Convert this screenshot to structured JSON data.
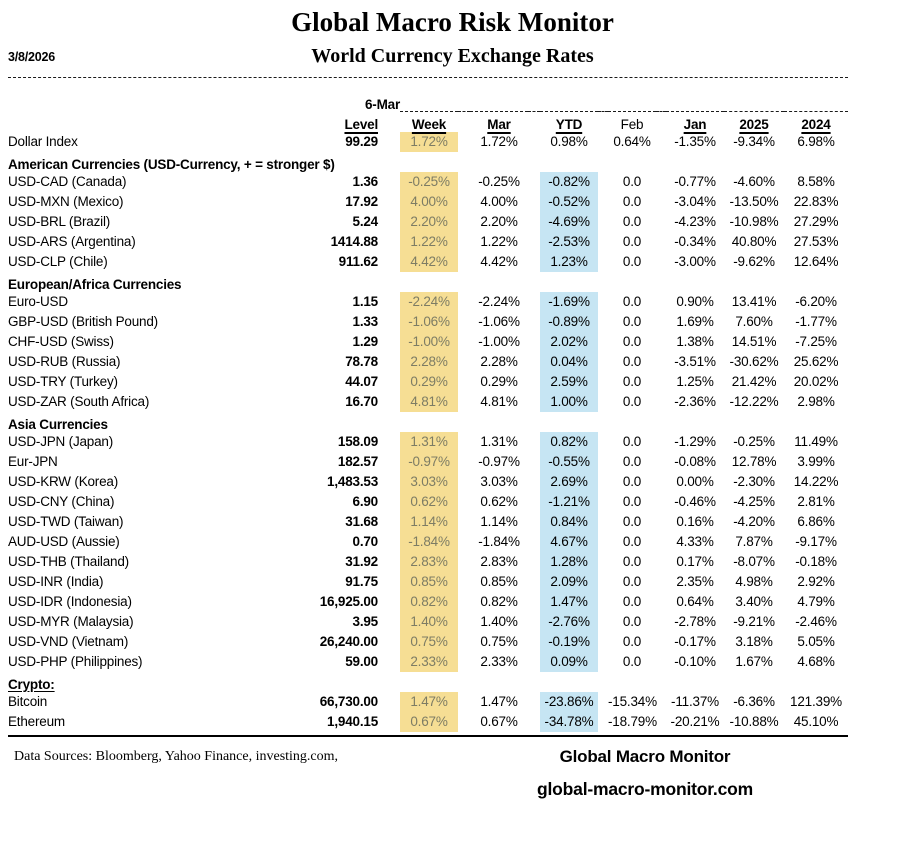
{
  "header": {
    "date": "3/8/2026",
    "title": "Global Macro Risk Monitor",
    "subtitle": "World Currency Exchange Rates",
    "asof_label": "6-Mar"
  },
  "colors": {
    "week_highlight": "#F6DE94",
    "ytd_highlight": "#C6E5F3",
    "week_text": "#7D7C64"
  },
  "table": {
    "columns": [
      {
        "key": "level",
        "label": "Level"
      },
      {
        "key": "week",
        "label": "Week"
      },
      {
        "key": "mar",
        "label": "Mar"
      },
      {
        "key": "ytd",
        "label": "YTD"
      },
      {
        "key": "feb",
        "label": "Feb"
      },
      {
        "key": "jan",
        "label": "Jan"
      },
      {
        "key": "y2025",
        "label": "2025"
      },
      {
        "key": "y2024",
        "label": "2024"
      }
    ],
    "rows": [
      {
        "type": "data",
        "label": "Dollar Index",
        "values": [
          "99.29",
          "1.72%",
          "1.72%",
          "0.98%",
          "0.64%",
          "-1.35%",
          "-9.34%",
          "6.98%"
        ],
        "week_hl": true,
        "ytd_hl": false
      },
      {
        "type": "section",
        "label": "American Currencies (USD-Currency, + = stronger $)",
        "underline": false
      },
      {
        "type": "data",
        "label": "USD-CAD (Canada)",
        "values": [
          "1.36",
          "-0.25%",
          "-0.25%",
          "-0.82%",
          "0.0",
          "-0.77%",
          "-4.60%",
          "8.58%"
        ],
        "week_hl": true,
        "ytd_hl": true
      },
      {
        "type": "data",
        "label": "USD-MXN  (Mexico)",
        "values": [
          "17.92",
          "4.00%",
          "4.00%",
          "-0.52%",
          "0.0",
          "-3.04%",
          "-13.50%",
          "22.83%"
        ],
        "week_hl": true,
        "ytd_hl": true
      },
      {
        "type": "data",
        "label": "USD-BRL (Brazil)",
        "values": [
          "5.24",
          "2.20%",
          "2.20%",
          "-4.69%",
          "0.0",
          "-4.23%",
          "-10.98%",
          "27.29%"
        ],
        "week_hl": true,
        "ytd_hl": true
      },
      {
        "type": "data",
        "label": "USD-ARS (Argentina)",
        "values": [
          "1414.88",
          "1.22%",
          "1.22%",
          "-2.53%",
          "0.0",
          "-0.34%",
          "40.80%",
          "27.53%"
        ],
        "week_hl": true,
        "ytd_hl": true
      },
      {
        "type": "data",
        "label": "USD-CLP (Chile)",
        "values": [
          "911.62",
          "4.42%",
          "4.42%",
          "1.23%",
          "0.0",
          "-3.00%",
          "-9.62%",
          "12.64%"
        ],
        "week_hl": true,
        "ytd_hl": true
      },
      {
        "type": "section",
        "label": "European/Africa Currencies",
        "underline": false
      },
      {
        "type": "data",
        "label": "Euro-USD",
        "values": [
          "1.15",
          "-2.24%",
          "-2.24%",
          "-1.69%",
          "0.0",
          "0.90%",
          "13.41%",
          "-6.20%"
        ],
        "week_hl": true,
        "ytd_hl": true
      },
      {
        "type": "data",
        "label": "GBP-USD (British Pound)",
        "values": [
          "1.33",
          "-1.06%",
          "-1.06%",
          "-0.89%",
          "0.0",
          "1.69%",
          "7.60%",
          "-1.77%"
        ],
        "week_hl": true,
        "ytd_hl": true
      },
      {
        "type": "data",
        "label": "CHF-USD (Swiss)",
        "values": [
          "1.29",
          "-1.00%",
          "-1.00%",
          "2.02%",
          "0.0",
          "1.38%",
          "14.51%",
          "-7.25%"
        ],
        "week_hl": true,
        "ytd_hl": true
      },
      {
        "type": "data",
        "label": "USD-RUB (Russia)",
        "values": [
          "78.78",
          "2.28%",
          "2.28%",
          "0.04%",
          "0.0",
          "-3.51%",
          "-30.62%",
          "25.62%"
        ],
        "week_hl": true,
        "ytd_hl": true
      },
      {
        "type": "data",
        "label": "USD-TRY (Turkey)",
        "values": [
          "44.07",
          "0.29%",
          "0.29%",
          "2.59%",
          "0.0",
          "1.25%",
          "21.42%",
          "20.02%"
        ],
        "week_hl": true,
        "ytd_hl": true
      },
      {
        "type": "data",
        "label": "USD-ZAR (South Africa)",
        "values": [
          "16.70",
          "4.81%",
          "4.81%",
          "1.00%",
          "0.0",
          "-2.36%",
          "-12.22%",
          "2.98%"
        ],
        "week_hl": true,
        "ytd_hl": true
      },
      {
        "type": "section",
        "label": "Asia Currencies",
        "underline": false
      },
      {
        "type": "data",
        "label": "USD-JPN (Japan)",
        "values": [
          "158.09",
          "1.31%",
          "1.31%",
          "0.82%",
          "0.0",
          "-1.29%",
          "-0.25%",
          "11.49%"
        ],
        "week_hl": true,
        "ytd_hl": true
      },
      {
        "type": "data",
        "label": "Eur-JPN",
        "values": [
          "182.57",
          "-0.97%",
          "-0.97%",
          "-0.55%",
          "0.0",
          "-0.08%",
          "12.78%",
          "3.99%"
        ],
        "week_hl": true,
        "ytd_hl": true
      },
      {
        "type": "data",
        "label": "USD-KRW (Korea)",
        "values": [
          "1,483.53",
          "3.03%",
          "3.03%",
          "2.69%",
          "0.0",
          "0.00%",
          "-2.30%",
          "14.22%"
        ],
        "week_hl": true,
        "ytd_hl": true
      },
      {
        "type": "data",
        "label": "USD-CNY (China)",
        "values": [
          "6.90",
          "0.62%",
          "0.62%",
          "-1.21%",
          "0.0",
          "-0.46%",
          "-4.25%",
          "2.81%"
        ],
        "week_hl": true,
        "ytd_hl": true
      },
      {
        "type": "data",
        "label": "USD-TWD (Taiwan)",
        "values": [
          "31.68",
          "1.14%",
          "1.14%",
          "0.84%",
          "0.0",
          "0.16%",
          "-4.20%",
          "6.86%"
        ],
        "week_hl": true,
        "ytd_hl": true
      },
      {
        "type": "data",
        "label": "AUD-USD (Aussie)",
        "values": [
          "0.70",
          "-1.84%",
          "-1.84%",
          "4.67%",
          "0.0",
          "4.33%",
          "7.87%",
          "-9.17%"
        ],
        "week_hl": true,
        "ytd_hl": true
      },
      {
        "type": "data",
        "label": "USD-THB  (Thailand)",
        "values": [
          "31.92",
          "2.83%",
          "2.83%",
          "1.28%",
          "0.0",
          "0.17%",
          "-8.07%",
          "-0.18%"
        ],
        "week_hl": true,
        "ytd_hl": true
      },
      {
        "type": "data",
        "label": "USD-INR (India)",
        "values": [
          "91.75",
          "0.85%",
          "0.85%",
          "2.09%",
          "0.0",
          "2.35%",
          "4.98%",
          "2.92%"
        ],
        "week_hl": true,
        "ytd_hl": true
      },
      {
        "type": "data",
        "label": "USD-IDR (Indonesia)",
        "values": [
          "16,925.00",
          "0.82%",
          "0.82%",
          "1.47%",
          "0.0",
          "0.64%",
          "3.40%",
          "4.79%"
        ],
        "week_hl": true,
        "ytd_hl": true
      },
      {
        "type": "data",
        "label": "USD-MYR (Malaysia)",
        "values": [
          "3.95",
          "1.40%",
          "1.40%",
          "-2.76%",
          "0.0",
          "-2.78%",
          "-9.21%",
          "-2.46%"
        ],
        "week_hl": true,
        "ytd_hl": true
      },
      {
        "type": "data",
        "label": "USD-VND (Vietnam)",
        "values": [
          "26,240.00",
          "0.75%",
          "0.75%",
          "-0.19%",
          "0.0",
          "-0.17%",
          "3.18%",
          "5.05%"
        ],
        "week_hl": true,
        "ytd_hl": true
      },
      {
        "type": "data",
        "label": "USD-PHP (Philippines)",
        "values": [
          "59.00",
          "2.33%",
          "2.33%",
          "0.09%",
          "0.0",
          "-0.10%",
          "1.67%",
          "4.68%"
        ],
        "week_hl": true,
        "ytd_hl": true
      },
      {
        "type": "section",
        "label": "Crypto:",
        "underline": true
      },
      {
        "type": "data",
        "label": "Bitcoin",
        "values": [
          "66,730.00",
          "1.47%",
          "1.47%",
          "-23.86%",
          "-15.34%",
          "-11.37%",
          "-6.36%",
          "121.39%"
        ],
        "week_hl": true,
        "ytd_hl": true
      },
      {
        "type": "data",
        "label": "Ethereum",
        "values": [
          "1,940.15",
          "0.67%",
          "0.67%",
          "-34.78%",
          "-18.79%",
          "-20.21%",
          "-10.88%",
          "45.10%"
        ],
        "week_hl": true,
        "ytd_hl": true
      }
    ]
  },
  "footer": {
    "sources": "Data Sources:  Bloomberg,  Yahoo Finance, investing.com,",
    "brand_name": "Global Macro Monitor",
    "brand_site": "global-macro-monitor.com"
  }
}
